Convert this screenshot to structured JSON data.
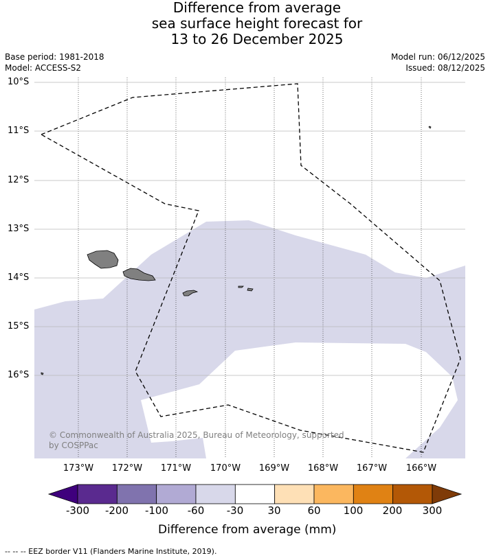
{
  "title": {
    "line1": "Difference from average",
    "line2": "sea surface height forecast for",
    "line3": "13 to 26 December 2025"
  },
  "meta": {
    "base_period": "Base period: 1981-2018",
    "model": "Model: ACCESS-S2",
    "model_run": "Model run: 06/12/2025",
    "issued": "Issued: 08/12/2025"
  },
  "map": {
    "lat_labels": [
      "10°S",
      "11°S",
      "12°S",
      "13°S",
      "14°S",
      "15°S",
      "16°S"
    ],
    "lon_labels": [
      "173°W",
      "172°W",
      "171°W",
      "170°W",
      "169°W",
      "168°W",
      "167°W",
      "166°W"
    ],
    "land_color": "#808080",
    "anomaly_band_color": "#d8d8ea",
    "eez_border_color": "#000000"
  },
  "copyright": {
    "line1": "© Commonwealth of Australia 2025, Bureau of Meteorology, supported",
    "line2": "by COSPPac"
  },
  "colorbar": {
    "tick_labels": [
      "-300",
      "-200",
      "-100",
      "-60",
      "-30",
      "30",
      "60",
      "100",
      "200",
      "300"
    ],
    "colors": [
      "#3f007d",
      "#5a2a8f",
      "#8073ae",
      "#b1aad4",
      "#d8d8ea",
      "#ffffff",
      "#fee0b6",
      "#fbb75f",
      "#e08214",
      "#b35806",
      "#7f3b08"
    ],
    "title": "Difference from average (mm)"
  },
  "footnote": "--  --  -- EEZ border V11 (Flanders Marine Institute, 2019)."
}
